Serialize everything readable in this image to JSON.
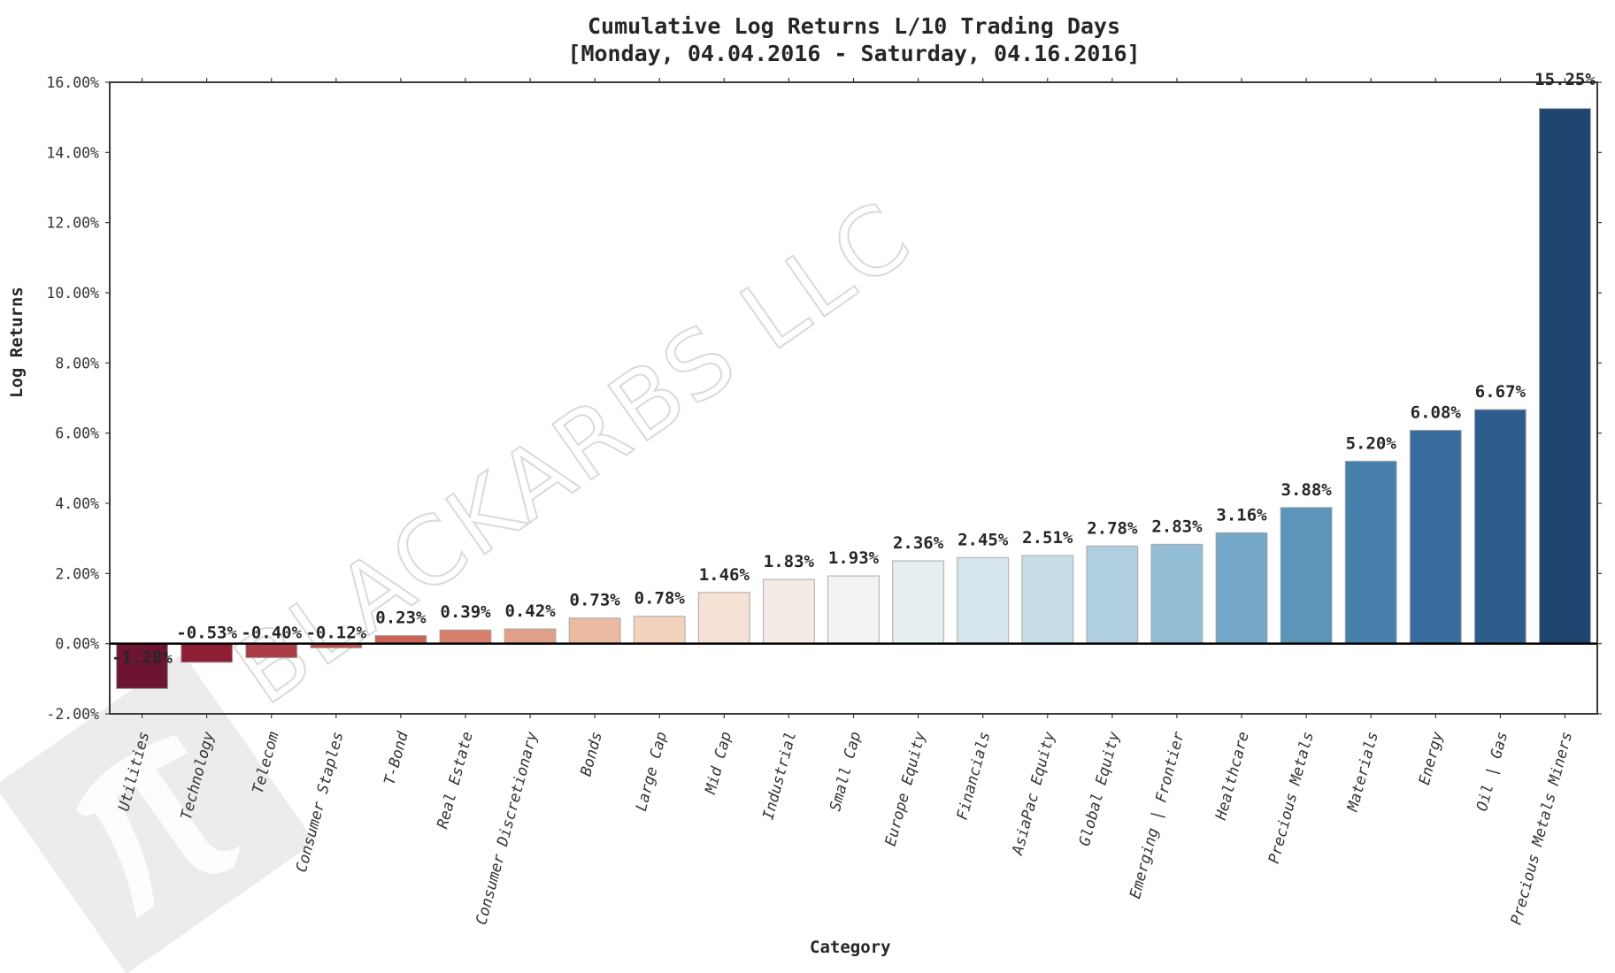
{
  "chart_data": {
    "type": "bar",
    "title": "Cumulative Log Returns L/10 Trading Days",
    "subtitle": "[Monday, 04.04.2016 - Saturday, 04.16.2016]",
    "xlabel": "Category",
    "ylabel": "Log Returns",
    "ylim": [
      -2,
      16
    ],
    "yticks": [
      -2,
      0,
      2,
      4,
      6,
      8,
      10,
      12,
      14,
      16
    ],
    "ytick_labels": [
      "-2.00%",
      "0.00%",
      "2.00%",
      "4.00%",
      "6.00%",
      "8.00%",
      "10.00%",
      "12.00%",
      "14.00%",
      "16.00%"
    ],
    "grid": false,
    "legend": null,
    "categories": [
      "Utilities",
      "Technology",
      "Telecom",
      "Consumer Staples",
      "T-Bond",
      "Real Estate",
      "Consumer Discretionary",
      "Bonds",
      "Large Cap",
      "Mid Cap",
      "Industrial",
      "Small Cap",
      "Europe Equity",
      "Financials",
      "AsiaPac Equity",
      "Global Equity",
      "Emerging | Frontier",
      "Healthcare",
      "Precious Metals",
      "Materials",
      "Energy",
      "Oil | Gas",
      "Precious Metals Miners"
    ],
    "values": [
      -1.28,
      -0.53,
      -0.4,
      -0.12,
      0.23,
      0.39,
      0.42,
      0.73,
      0.78,
      1.46,
      1.83,
      1.93,
      2.36,
      2.45,
      2.51,
      2.78,
      2.83,
      3.16,
      3.88,
      5.2,
      6.08,
      6.67,
      15.25
    ],
    "value_labels": [
      "-1.28%",
      "-0.53%",
      "-0.40%",
      "-0.12%",
      "0.23%",
      "0.39%",
      "0.42%",
      "0.73%",
      "0.78%",
      "1.46%",
      "1.83%",
      "1.93%",
      "2.36%",
      "2.45%",
      "2.51%",
      "2.78%",
      "2.83%",
      "3.16%",
      "3.88%",
      "5.20%",
      "6.08%",
      "6.67%",
      "15.25%"
    ],
    "colors": [
      "#6d1530",
      "#8e1e33",
      "#ab3d47",
      "#c1544e",
      "#c96552",
      "#d6806b",
      "#e0a087",
      "#ebbaa3",
      "#f2d1bd",
      "#f6e1d5",
      "#f5ebe6",
      "#f2f4f4",
      "#e6eef2",
      "#d6e5ee",
      "#c6dce7",
      "#b0cfe0",
      "#93bcd5",
      "#74a6c7",
      "#5b95b9",
      "#4680ab",
      "#396d9e",
      "#2e5c8c",
      "#1f446f"
    ]
  },
  "watermark": {
    "text": "BLACKARBS LLC",
    "logo": "pi-logo"
  }
}
